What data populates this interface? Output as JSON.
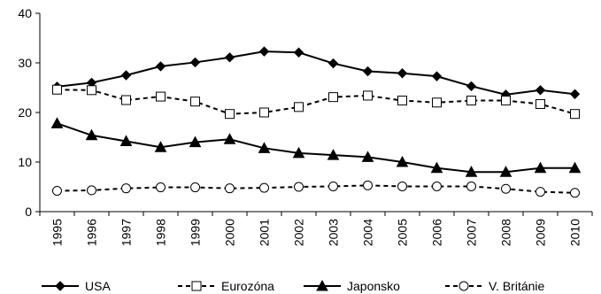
{
  "chart_data": {
    "type": "line",
    "title": "",
    "xlabel": "",
    "ylabel": "",
    "ylim": [
      0,
      40
    ],
    "yticks": [
      0,
      10,
      20,
      30,
      40
    ],
    "grid": false,
    "legend_position": "bottom",
    "categories": [
      "1995",
      "1996",
      "1997",
      "1998",
      "1999",
      "2000",
      "2001",
      "2002",
      "2003",
      "2004",
      "2005",
      "2006",
      "2007",
      "2008",
      "2009",
      "2010"
    ],
    "series": [
      {
        "name": "USA",
        "marker": "diamond",
        "line": "solid",
        "color": "#000000",
        "values": [
          25.2,
          26.0,
          27.5,
          29.3,
          30.1,
          31.1,
          32.3,
          32.1,
          29.9,
          28.3,
          27.9,
          27.3,
          25.3,
          23.6,
          24.5,
          23.7
        ]
      },
      {
        "name": "Eurozóna",
        "marker": "square",
        "line": "dashed",
        "color": "#000000",
        "values": [
          24.6,
          24.5,
          22.5,
          23.2,
          22.2,
          19.7,
          20.0,
          21.1,
          23.1,
          23.4,
          22.4,
          22.0,
          22.4,
          22.4,
          21.7,
          19.7
        ]
      },
      {
        "name": "Japonsko",
        "marker": "triangle",
        "line": "solid",
        "color": "#000000",
        "values": [
          17.8,
          15.4,
          14.2,
          13.0,
          14.0,
          14.6,
          12.8,
          11.8,
          11.4,
          11.0,
          10.0,
          8.8,
          8.0,
          8.0,
          8.8,
          8.8
        ]
      },
      {
        "name": "V. Británie",
        "marker": "circle",
        "line": "dashed",
        "color": "#000000",
        "values": [
          4.2,
          4.3,
          4.7,
          4.9,
          4.9,
          4.7,
          4.8,
          5.0,
          5.1,
          5.3,
          5.1,
          5.1,
          5.1,
          4.6,
          4.0,
          3.8
        ]
      }
    ]
  }
}
